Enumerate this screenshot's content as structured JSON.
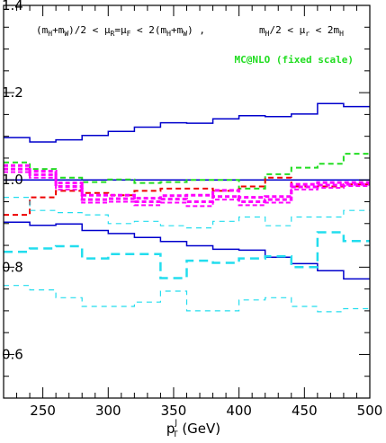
{
  "chart_data": {
    "type": "line",
    "title": "",
    "xlabel_main": "p",
    "xlabel_sub": "T",
    "xlabel_sup": "J",
    "xlabel_unit": " (GeV)",
    "ylabel": "",
    "xlim": [
      220,
      500
    ],
    "ylim": [
      0.5,
      1.4
    ],
    "grid": false,
    "x_ticks": [
      250,
      300,
      350,
      400,
      450,
      500
    ],
    "y_ticks": [
      0.6,
      0.8,
      1.0,
      1.2,
      1.4
    ],
    "x_tick_labels": [
      "250",
      "300",
      "350",
      "400",
      "450",
      "500"
    ],
    "y_tick_labels": [
      "0.6",
      "0.8",
      "1.0",
      "1.2",
      "1.4"
    ],
    "bin_edges": [
      220,
      240,
      260,
      280,
      300,
      320,
      340,
      360,
      380,
      400,
      420,
      440,
      460,
      480,
      500
    ],
    "annotations": [
      "(m<sub>H</sub>+m<sub>W</sub>)/2 < µ<sub>R</sub>=µ<sub>F</sub> < 2(m<sub>H</sub>+m<sub>W</sub>) ,",
      "m<sub>H</sub>/2 < µ<sub>r</sub> < 2m<sub>H</sub>"
    ],
    "legend": [
      {
        "label": "MC@NLO (fixed scale)",
        "color": "#22dd22"
      }
    ],
    "series": [
      {
        "color": "#0000cc",
        "dash": "",
        "width": 1.5,
        "values": [
          1.097,
          1.087,
          1.092,
          1.102,
          1.111,
          1.121,
          1.131,
          1.13,
          1.14,
          1.147,
          1.145,
          1.151,
          1.175,
          1.168
        ]
      },
      {
        "color": "#0000cc",
        "dash": "",
        "width": 1.5,
        "values": [
          0.903,
          0.896,
          0.899,
          0.884,
          0.877,
          0.868,
          0.859,
          0.849,
          0.841,
          0.839,
          0.823,
          0.808,
          0.792,
          0.773
        ]
      },
      {
        "color": "#0000cc",
        "dash": "",
        "width": 1.5,
        "values": [
          1.0,
          1.0,
          1.0,
          1.0,
          1.0,
          1.0,
          1.0,
          1.0,
          1.0,
          1.0,
          1.0,
          1.0,
          1.0,
          1.0
        ]
      },
      {
        "color": "#22dd22",
        "dash": "6,4",
        "width": 2,
        "values": [
          1.04,
          1.025,
          1.005,
          0.995,
          1.001,
          0.993,
          0.995,
          1.0,
          1.0,
          0.98,
          1.013,
          1.028,
          1.037,
          1.06
        ]
      },
      {
        "color": "#ee0000",
        "dash": "6,4",
        "width": 2,
        "values": [
          0.92,
          0.96,
          0.975,
          0.97,
          0.965,
          0.975,
          0.98,
          0.98,
          0.975,
          0.985,
          1.005,
          0.985,
          0.985,
          0.99
        ]
      },
      {
        "color": "#ff00ff",
        "dash": "5,3",
        "width": 3,
        "values": [
          1.033,
          1.02,
          0.993,
          0.965,
          0.965,
          0.958,
          0.964,
          0.965,
          0.976,
          0.96,
          0.962,
          0.99,
          0.994,
          0.994
        ]
      },
      {
        "color": "#ff00ff",
        "dash": "5,3",
        "width": 3,
        "values": [
          1.025,
          1.012,
          0.985,
          0.955,
          0.957,
          0.95,
          0.956,
          0.95,
          0.962,
          0.95,
          0.955,
          0.984,
          0.988,
          0.99
        ]
      },
      {
        "color": "#ff00ff",
        "dash": "5,3",
        "width": 2,
        "values": [
          1.018,
          1.005,
          0.978,
          0.948,
          0.95,
          0.942,
          0.948,
          0.94,
          0.955,
          0.942,
          0.948,
          0.978,
          0.982,
          0.986
        ]
      },
      {
        "color": "#22ddee",
        "dash": "10,6",
        "width": 2.5,
        "values": [
          0.835,
          0.843,
          0.848,
          0.82,
          0.83,
          0.83,
          0.775,
          0.815,
          0.81,
          0.82,
          0.825,
          0.8,
          0.88,
          0.86
        ]
      },
      {
        "color": "#22ddee",
        "dash": "6,5",
        "width": 1.2,
        "values": [
          0.96,
          0.93,
          0.925,
          0.92,
          0.9,
          0.905,
          0.895,
          0.89,
          0.905,
          0.915,
          0.895,
          0.915,
          0.915,
          0.93
        ]
      },
      {
        "color": "#22ddee",
        "dash": "6,5",
        "width": 1.2,
        "values": [
          0.758,
          0.748,
          0.73,
          0.71,
          0.71,
          0.72,
          0.745,
          0.7,
          0.7,
          0.725,
          0.73,
          0.71,
          0.698,
          0.705
        ]
      }
    ]
  }
}
